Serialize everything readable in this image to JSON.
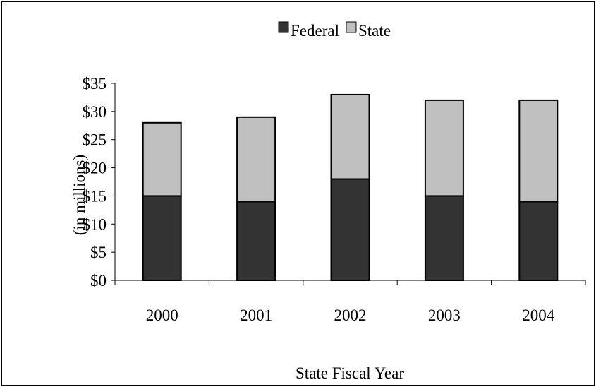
{
  "chart_data": {
    "type": "bar",
    "stacked": true,
    "title": "",
    "xlabel": "State Fiscal Year",
    "ylabel": "(in millions)",
    "categories": [
      "2000",
      "2001",
      "2002",
      "2003",
      "2004"
    ],
    "series": [
      {
        "name": "Federal",
        "values": [
          15,
          14,
          18,
          15,
          14
        ],
        "color": "#333333"
      },
      {
        "name": "State",
        "values": [
          13,
          15,
          15,
          17,
          18
        ],
        "color": "#c0c0c0"
      }
    ],
    "ylim": [
      0,
      35
    ],
    "yticks": [
      0,
      5,
      10,
      15,
      20,
      25,
      30,
      35
    ],
    "ytick_labels": [
      "$0",
      "$5",
      "$10",
      "$15",
      "$20",
      "$25",
      "$30",
      "$35"
    ],
    "grid": false,
    "legend_position": "top-center"
  }
}
